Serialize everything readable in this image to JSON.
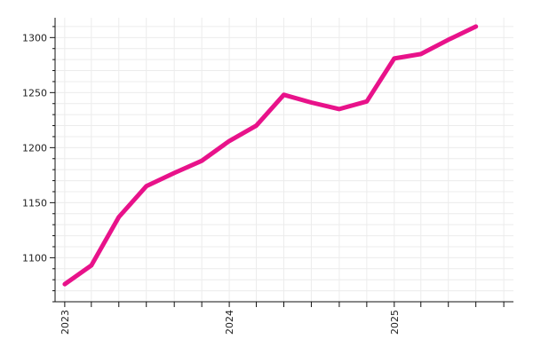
{
  "chart_data": {
    "type": "line",
    "title": "",
    "xlabel": "",
    "ylabel": "",
    "x": [
      "2023-01-01",
      "2023-03-01",
      "2023-05-01",
      "2023-07-01",
      "2023-09-01",
      "2023-11-01",
      "2024-01-01",
      "2024-03-01",
      "2024-05-01",
      "2024-07-01",
      "2024-09-01",
      "2024-11-01",
      "2025-01-01",
      "2025-03-01",
      "2025-05-01",
      "2025-07-01",
      "2025-09-01"
    ],
    "series": [
      {
        "color": "#e8128a",
        "values": [
          1076,
          1093,
          1137,
          1165,
          1177,
          1188,
          1206,
          1220,
          1248,
          1241,
          1235,
          1242,
          1281,
          1285,
          1298,
          1310,
          null
        ]
      }
    ],
    "ylim": [
      1060,
      1318
    ],
    "y_ticks": [
      1100,
      1150,
      1200,
      1250,
      1300
    ],
    "x_tick_labels": [
      "2023",
      "2024",
      "2025"
    ],
    "grid": true,
    "line_color": "#e8128a"
  }
}
